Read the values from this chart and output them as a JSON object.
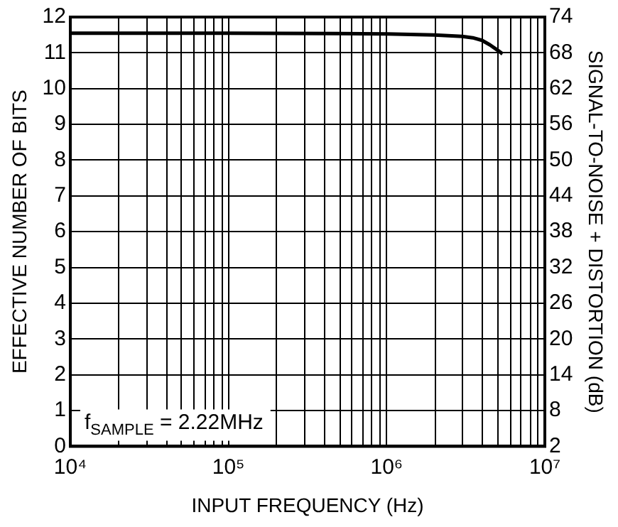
{
  "chart_data": {
    "type": "line",
    "xlabel": "INPUT FREQUENCY (Hz)",
    "ylabel": "EFFECTIVE NUMBER OF BITS",
    "y2label": "SIGNAL-TO-NOISE + DISTORTION (dB)",
    "x": [
      10000,
      100000,
      500000,
      1000000,
      2000000,
      3000000,
      3500000,
      4000000,
      4500000,
      5000000,
      5400000
    ],
    "series": [
      {
        "color": "#000000",
        "values": [
          11.55,
          11.55,
          11.54,
          11.53,
          11.5,
          11.46,
          11.42,
          11.35,
          11.22,
          11.08,
          10.97
        ]
      }
    ],
    "log": "x",
    "xlim": [
      10000,
      10000000
    ],
    "xticks": [
      {
        "value": 10000,
        "label": "10⁴"
      },
      {
        "value": 100000,
        "label": "10⁵"
      },
      {
        "value": 1000000,
        "label": "10⁶"
      },
      {
        "value": 10000000,
        "label": "10⁷"
      }
    ],
    "ylim": [
      0,
      12
    ],
    "yticks": [
      0,
      1,
      2,
      3,
      4,
      5,
      6,
      7,
      8,
      9,
      10,
      11,
      12
    ],
    "y2lim": [
      2,
      74
    ],
    "y2ticks": [
      2,
      8,
      14,
      20,
      26,
      32,
      38,
      44,
      50,
      56,
      62,
      68,
      74
    ],
    "grid": true,
    "legend": false,
    "marker": "none",
    "line_style": "solid",
    "annotations": [
      "f$_{SAMPLE}$ = 2.22MHz"
    ]
  }
}
